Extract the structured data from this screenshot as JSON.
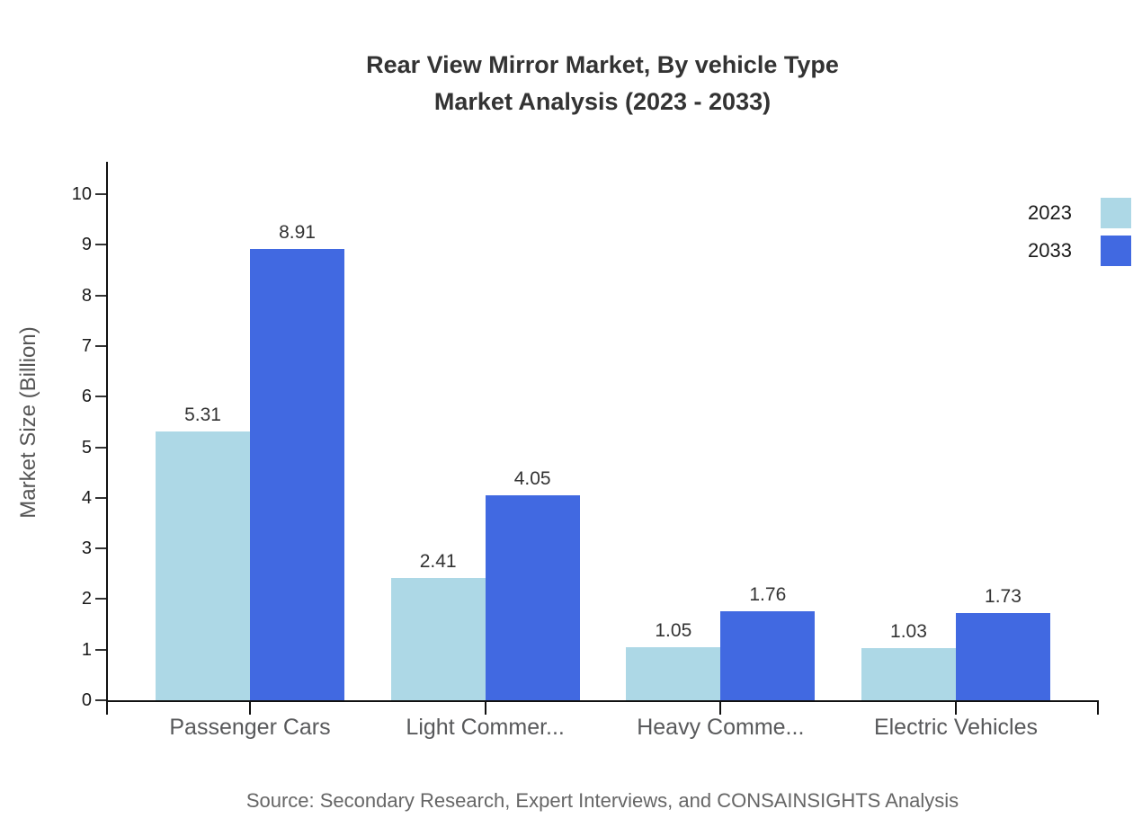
{
  "chart_data": {
    "type": "bar",
    "title": "Rear View Mirror Market, By vehicle Type Market Analysis (2023 - 2033)",
    "title_lines": [
      "Rear View Mirror Market, By vehicle Type",
      "Market Analysis (2023 - 2033)"
    ],
    "categories": [
      "Passenger Cars",
      "Light Commer...",
      "Heavy Comme...",
      "Electric Vehicles"
    ],
    "series": [
      {
        "name": "2023",
        "color": "#ADD8E6",
        "values": [
          5.31,
          2.41,
          1.05,
          1.03
        ]
      },
      {
        "name": "2033",
        "color": "#4169E1",
        "values": [
          8.91,
          4.05,
          1.76,
          1.73
        ]
      }
    ],
    "xlabel": "",
    "ylabel": "Market Size (Billion)",
    "ylim": [
      0,
      10
    ],
    "yticks": [
      0,
      1,
      2,
      3,
      4,
      5,
      6,
      7,
      8,
      9,
      10
    ],
    "grid": false,
    "legend_position": "top-right",
    "value_labels": true,
    "axis_color": "#111111",
    "background_color": "#ffffff"
  },
  "source": {
    "text": "Source: Secondary Research, Expert Interviews, and CONSAINSIGHTS Analysis"
  }
}
